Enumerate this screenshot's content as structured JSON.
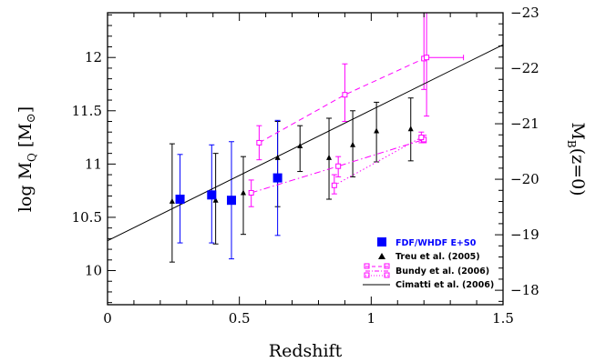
{
  "chart_data": {
    "type": "scatter",
    "xlabel": "Redshift",
    "ylabel_main": "log M",
    "ylabel_sub": "Q",
    "ylabel_unit_open": "[M",
    "ylabel_unit_sym": "⊙",
    "ylabel_unit_close": "]",
    "y2label_main": "M",
    "y2label_sub": "B",
    "y2label_rest": "(z=0)",
    "xlim": [
      0,
      1.5
    ],
    "ylim": [
      9.68,
      12.42
    ],
    "y2lim": [
      -17.74,
      -23.0
    ],
    "x_ticks": [
      {
        "value": 0,
        "label": "0"
      },
      {
        "value": 0.5,
        "label": "0.5"
      },
      {
        "value": 1.0,
        "label": "1"
      },
      {
        "value": 1.5,
        "label": "1.5"
      }
    ],
    "y_ticks": [
      {
        "value": 10.0,
        "label": "10"
      },
      {
        "value": 10.5,
        "label": "10.5"
      },
      {
        "value": 11.0,
        "label": "11"
      },
      {
        "value": 11.5,
        "label": "11.5"
      },
      {
        "value": 12.0,
        "label": "12"
      }
    ],
    "y2_ticks": [
      {
        "value": -18,
        "label": "−18"
      },
      {
        "value": -19,
        "label": "−19"
      },
      {
        "value": -20,
        "label": "−20"
      },
      {
        "value": -21,
        "label": "−21"
      },
      {
        "value": -22,
        "label": "−22"
      },
      {
        "value": -23,
        "label": "−23"
      }
    ],
    "series": [
      {
        "name": "FDF/WHDF E+S0",
        "color": "#0000ff",
        "marker": "square",
        "points": [
          {
            "x": 0.275,
            "y": 10.67,
            "ylo": 10.26,
            "yhi": 11.09
          },
          {
            "x": 0.395,
            "y": 10.71,
            "ylo": 10.26,
            "yhi": 11.18
          },
          {
            "x": 0.47,
            "y": 10.66,
            "ylo": 10.11,
            "yhi": 11.21
          },
          {
            "x": 0.645,
            "y": 10.87,
            "ylo": 10.33,
            "yhi": 11.41
          }
        ]
      },
      {
        "name": "Treu et al. (2005)",
        "color": "#000000",
        "marker": "triangle",
        "points": [
          {
            "x": 0.245,
            "y": 10.65,
            "ylo": 10.08,
            "yhi": 11.19
          },
          {
            "x": 0.41,
            "y": 10.66,
            "ylo": 10.25,
            "yhi": 11.1
          },
          {
            "x": 0.515,
            "y": 10.73,
            "ylo": 10.34,
            "yhi": 11.07
          },
          {
            "x": 0.645,
            "y": 11.06,
            "ylo": 10.6,
            "yhi": 11.4
          },
          {
            "x": 0.73,
            "y": 11.17,
            "ylo": 10.93,
            "yhi": 11.36
          },
          {
            "x": 0.84,
            "y": 11.06,
            "ylo": 10.67,
            "yhi": 11.43
          },
          {
            "x": 0.93,
            "y": 11.18,
            "ylo": 10.88,
            "yhi": 11.5
          },
          {
            "x": 1.02,
            "y": 11.31,
            "ylo": 11.02,
            "yhi": 11.58
          },
          {
            "x": 1.15,
            "y": 11.33,
            "ylo": 11.03,
            "yhi": 11.62
          }
        ]
      },
      {
        "name": "Bundy et al. (2006)",
        "color": "#ff00ff",
        "marker": "open-square",
        "groups": [
          {
            "style": "dashed",
            "points": [
              {
                "x": 0.575,
                "y": 11.2,
                "ylo": 11.04,
                "yhi": 11.36
              },
              {
                "x": 0.9,
                "y": 11.65,
                "ylo": 11.4,
                "yhi": 11.94
              },
              {
                "x": 1.2,
                "y": 11.99,
                "ylo": 11.7,
                "yhi": 12.42
              },
              {
                "x": 1.21,
                "y": 12.0,
                "ylo": 11.45,
                "yhi": 12.42,
                "xlo": 1.21,
                "xhi": 1.35
              }
            ]
          },
          {
            "style": "dashdot",
            "points": [
              {
                "x": 0.545,
                "y": 10.73,
                "ylo": 10.6,
                "yhi": 10.85
              },
              {
                "x": 0.875,
                "y": 10.98,
                "ylo": 10.88,
                "yhi": 11.07
              },
              {
                "x": 1.2,
                "y": 11.23,
                "ylo": 11.2,
                "yhi": 11.27
              }
            ]
          },
          {
            "style": "dotted",
            "points": [
              {
                "x": 0.86,
                "y": 10.8,
                "ylo": 10.72,
                "yhi": 10.9
              },
              {
                "x": 1.19,
                "y": 11.25,
                "ylo": 11.2,
                "yhi": 11.3
              }
            ]
          }
        ]
      },
      {
        "name": "Cimatti et al. (2006)",
        "color": "#000000",
        "marker": "line",
        "line": {
          "x0": 0,
          "y0": 10.28,
          "x1": 1.5,
          "y1": 12.12
        }
      }
    ],
    "legend": {
      "placement": "bottom-right",
      "entries": [
        {
          "label": "FDF/WHDF E+S0",
          "color": "#0000ff"
        },
        {
          "label": "Treu et al. (2005)",
          "color": "#000000"
        },
        {
          "label": "Bundy et al. (2006)",
          "color": "#000000"
        },
        {
          "label": "Cimatti et al. (2006)",
          "color": "#000000"
        }
      ]
    }
  }
}
